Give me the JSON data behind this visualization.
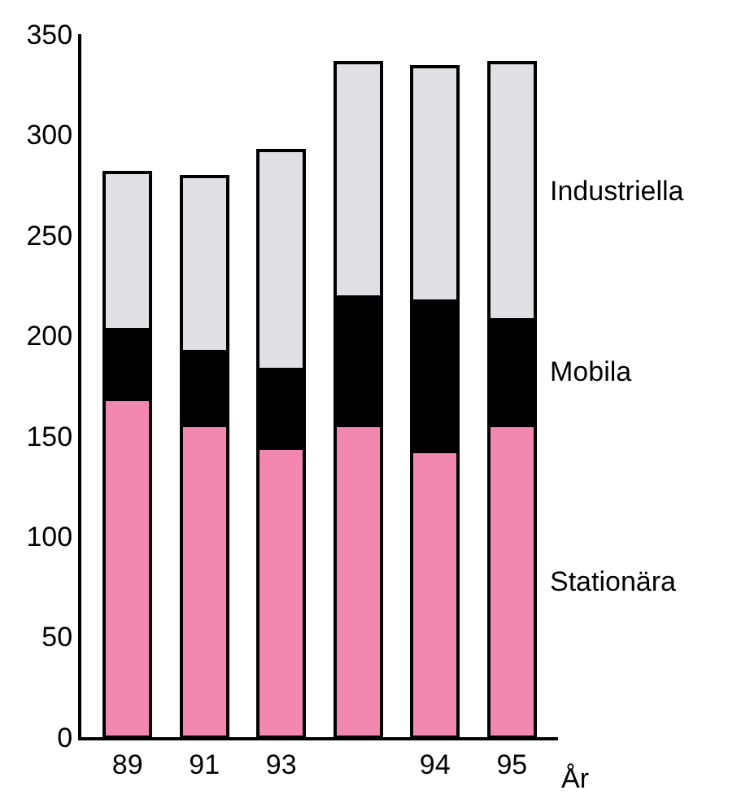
{
  "chart_data": {
    "type": "bar",
    "stacked": true,
    "xlabel": "År",
    "categories": [
      "89",
      "91",
      "93",
      null,
      "94",
      "95"
    ],
    "series": [
      {
        "name": "Stationära",
        "color": "#f287b0",
        "values": [
          168,
          155,
          144,
          155,
          142,
          155
        ]
      },
      {
        "name": "Mobila",
        "color": "#000000",
        "values": [
          35,
          37,
          39,
          64,
          75,
          53
        ]
      },
      {
        "name": "Industriella",
        "color": "#e0e0e2",
        "values": [
          78,
          87,
          109,
          117,
          117,
          128
        ]
      }
    ],
    "ylim": [
      0,
      350
    ],
    "yticks": [
      0,
      50,
      100,
      150,
      200,
      250,
      300,
      350
    ],
    "legend": false
  }
}
